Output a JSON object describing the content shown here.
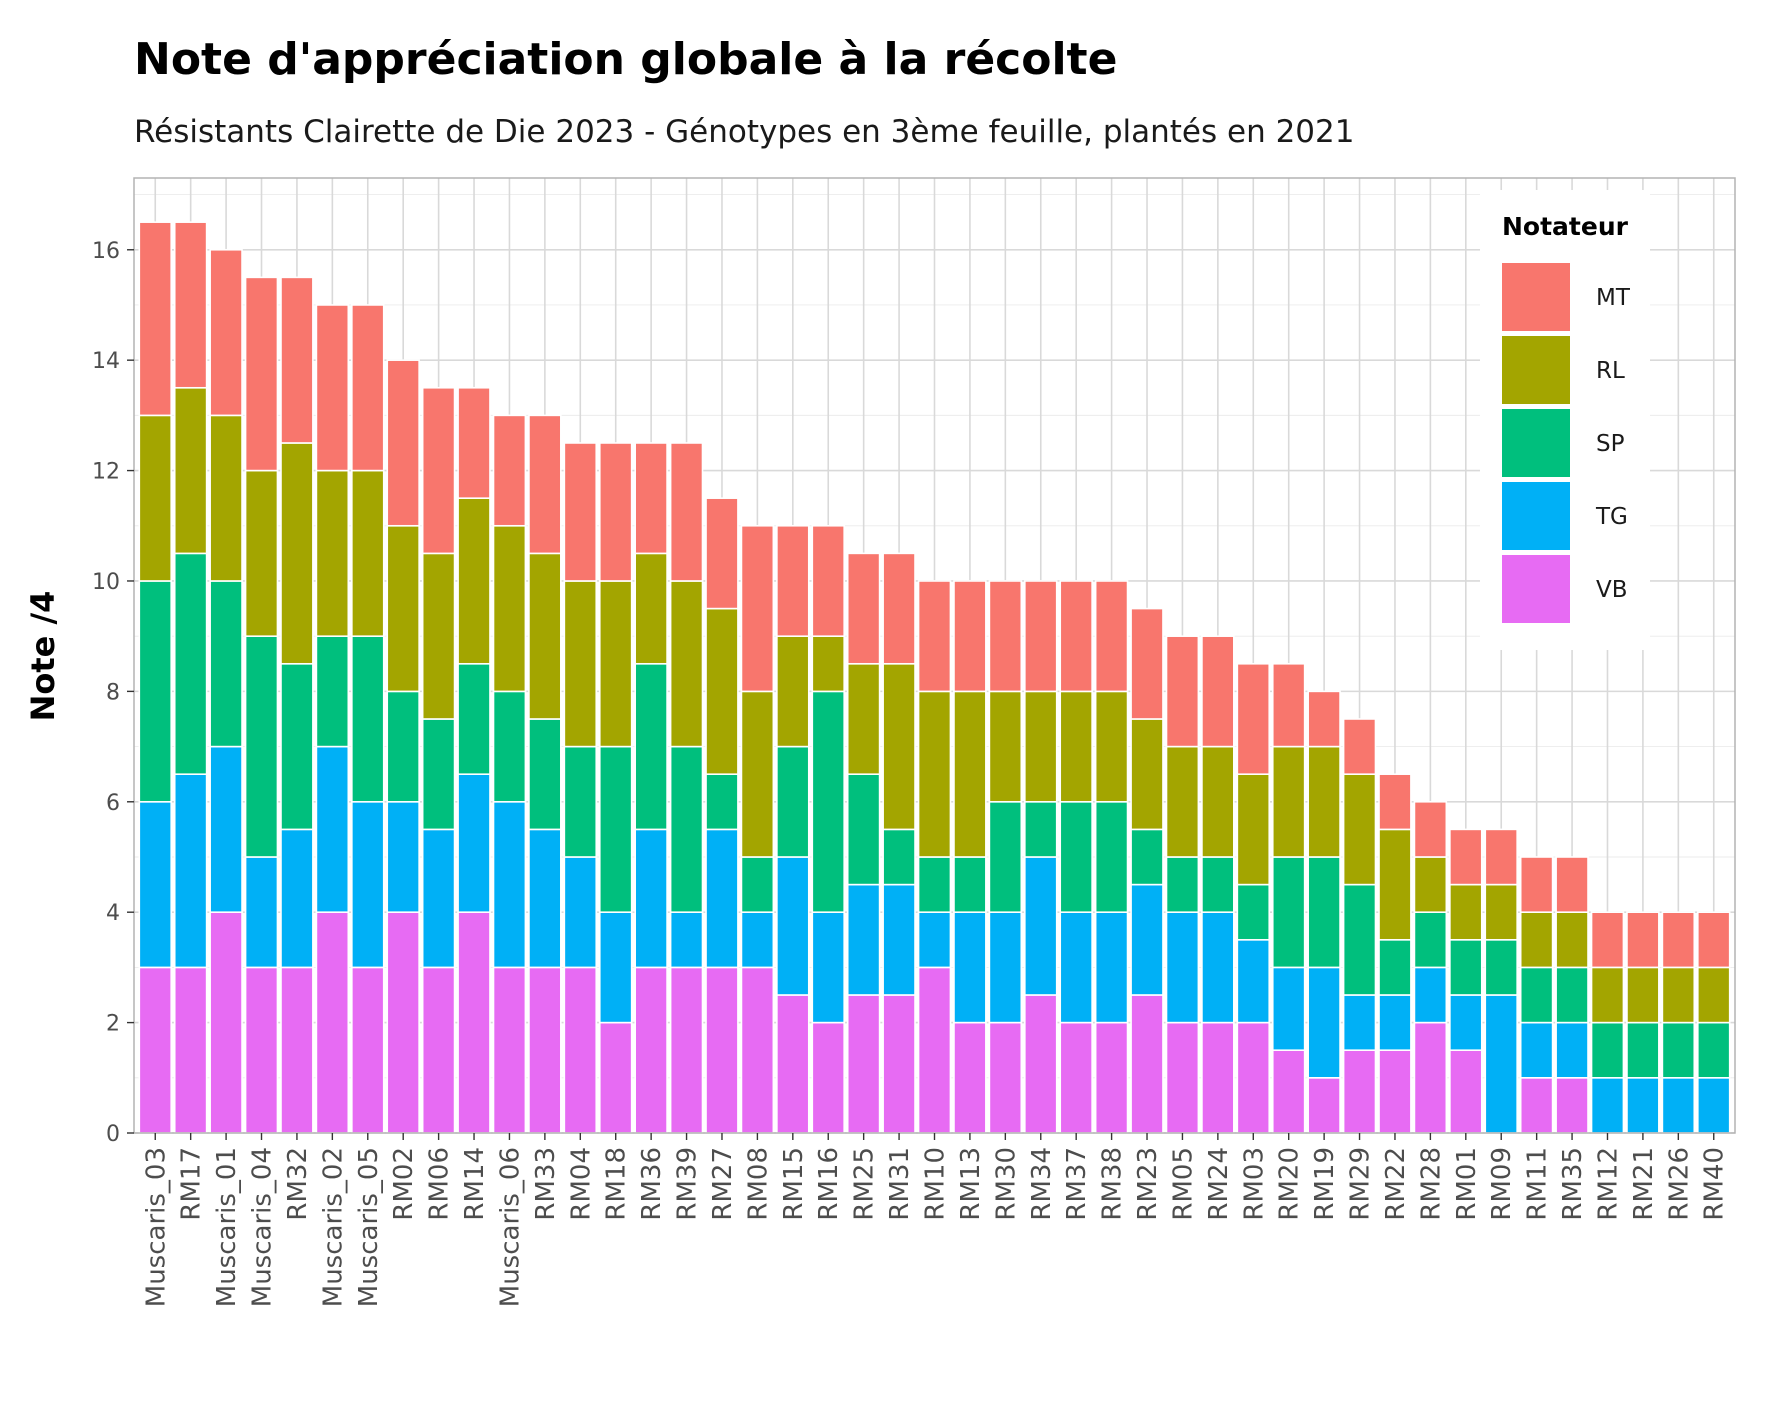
{
  "chart_data": {
    "type": "bar",
    "stacked": true,
    "title": "Note d'appréciation globale à la récolte",
    "subtitle": "Résistants Clairette de Die 2023 - Génotypes en 3ème feuille, plantés en 2021",
    "ylabel": "Note /4",
    "ylim": [
      0,
      17.3
    ],
    "yticks": [
      0,
      2,
      4,
      6,
      8,
      10,
      12,
      14,
      16
    ],
    "grid": true,
    "legend": {
      "title": "Notateur",
      "position": "top-right"
    },
    "categories": [
      "Muscaris_03",
      "RM17",
      "Muscaris_01",
      "Muscaris_04",
      "RM32",
      "Muscaris_02",
      "Muscaris_05",
      "RM02",
      "RM06",
      "RM14",
      "Muscaris_06",
      "RM33",
      "RM04",
      "RM18",
      "RM36",
      "RM39",
      "RM27",
      "RM08",
      "RM15",
      "RM16",
      "RM25",
      "RM31",
      "RM10",
      "RM13",
      "RM30",
      "RM34",
      "RM37",
      "RM38",
      "RM23",
      "RM05",
      "RM24",
      "RM03",
      "RM20",
      "RM19",
      "RM29",
      "RM22",
      "RM28",
      "RM01",
      "RM09",
      "RM11",
      "RM35",
      "RM12",
      "RM21",
      "RM26",
      "RM40"
    ],
    "series": [
      {
        "name": "MT",
        "color": "#F8766D",
        "values": [
          3.5,
          3,
          3,
          3.5,
          3,
          3,
          3,
          3,
          3,
          2,
          2,
          2.5,
          2.5,
          2.5,
          2,
          2.5,
          2,
          3,
          2,
          2,
          2,
          2,
          2,
          2,
          2,
          2,
          2,
          2,
          2,
          2,
          2,
          2,
          1.5,
          1,
          1,
          1,
          1,
          1,
          1,
          1,
          1,
          1,
          1,
          1,
          1
        ]
      },
      {
        "name": "RL",
        "color": "#A3A500",
        "values": [
          3,
          3,
          3,
          3,
          4,
          3,
          3,
          3,
          3,
          3,
          3,
          3,
          3,
          3,
          2,
          3,
          3,
          3,
          2,
          1,
          2,
          3,
          3,
          3,
          2,
          2,
          2,
          2,
          2,
          2,
          2,
          2,
          2,
          2,
          2,
          2,
          1,
          1,
          1,
          1,
          1,
          1,
          1,
          1,
          1
        ]
      },
      {
        "name": "SP",
        "color": "#00BF7D",
        "values": [
          4,
          4,
          3,
          4,
          3,
          2,
          3,
          2,
          2,
          2,
          2,
          2,
          2,
          3,
          3,
          3,
          1,
          1,
          2,
          4,
          2,
          1,
          1,
          1,
          2,
          1,
          2,
          2,
          1,
          1,
          1,
          1,
          2,
          2,
          2,
          1,
          1,
          1,
          1,
          1,
          1,
          1,
          1,
          1,
          1
        ]
      },
      {
        "name": "TG",
        "color": "#00B0F6",
        "values": [
          3,
          3.5,
          3,
          2,
          2.5,
          3,
          3,
          2,
          2.5,
          2.5,
          3,
          2.5,
          2,
          2,
          2.5,
          1,
          2.5,
          1,
          2.5,
          2,
          2,
          2,
          1,
          2,
          2,
          2.5,
          2,
          2,
          2,
          2,
          2,
          1.5,
          1.5,
          2,
          1,
          1,
          1,
          1,
          2.5,
          1,
          1,
          1,
          1,
          1,
          1
        ]
      },
      {
        "name": "VB",
        "color": "#E76BF3",
        "values": [
          3,
          3,
          4,
          3,
          3,
          4,
          3,
          4,
          3,
          4,
          3,
          3,
          3,
          2,
          3,
          3,
          3,
          3,
          2.5,
          2,
          2.5,
          2.5,
          3,
          2,
          2,
          2.5,
          2,
          2,
          2.5,
          2,
          2,
          2,
          1.5,
          1,
          1.5,
          1.5,
          2,
          1.5,
          0,
          1,
          1,
          0,
          0,
          0,
          0
        ]
      }
    ]
  }
}
